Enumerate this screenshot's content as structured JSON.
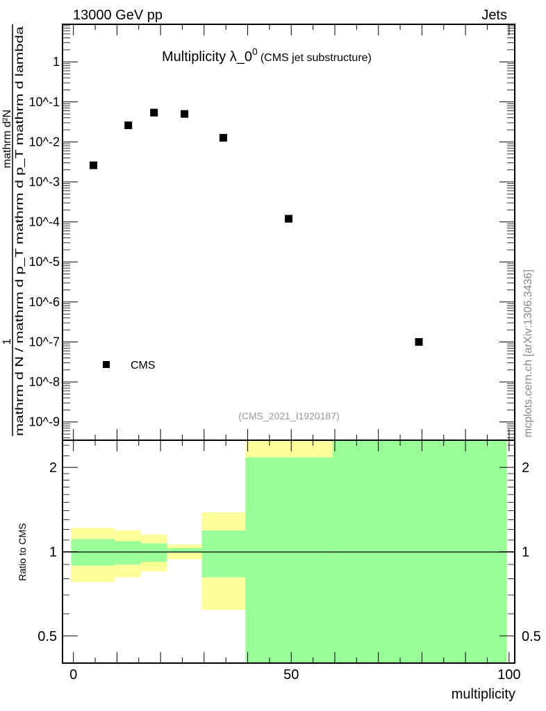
{
  "header": {
    "energy": "13000 GeV pp",
    "process": "Jets"
  },
  "watermark": "mcplots.cern.ch [arXiv:1306.3436]",
  "analysis_id": "(CMS_2021_I1920187)",
  "chart_data": [
    {
      "type": "scatter",
      "title": "Multiplicity λ_0",
      "title_sup": "0",
      "subtitle": "(CMS jet substructure)",
      "ylabel_numerator": [
        "1",
        "mathrm d²N"
      ],
      "ylabel_denominator": "mathrm d N / mathrm d p_T mathrm d p_T mathrm d lambda",
      "yscale": "log",
      "xlim": [
        -2.5,
        101.3
      ],
      "ylim": [
        3.5e-10,
        8.7
      ],
      "ytick_labels": [
        "1",
        "10^-1",
        "10^-2",
        "10^-3",
        "10^-4",
        "10^-5",
        "10^-6",
        "10^-7",
        "10^-8",
        "10^-9"
      ],
      "legend": {
        "label": "CMS",
        "position": "bottom-left"
      },
      "series": [
        {
          "name": "CMS",
          "x": [
            4.6,
            12.6,
            18.5,
            25.5,
            34.4,
            49.4,
            79.3
          ],
          "y": [
            0.0026,
            0.026,
            0.054,
            0.05,
            0.0127,
            0.00012,
            1e-07
          ]
        }
      ]
    },
    {
      "type": "area",
      "ylabel": "Ratio to CMS",
      "xlabel": "multiplicity",
      "yscale": "log",
      "ylim": [
        0.4,
        2.5
      ],
      "xlim": [
        -2.5,
        101.3
      ],
      "xtick_labels": [
        "0",
        "50",
        "100"
      ],
      "ytick_labels": [
        "0.5",
        "1",
        "2"
      ],
      "bins": [
        {
          "lo": -0.5,
          "hi": 9.5,
          "yellow": [
            0.78,
            1.215
          ],
          "green": [
            0.892,
            1.109
          ]
        },
        {
          "lo": 9.5,
          "hi": 15.5,
          "yellow": [
            0.81,
            1.19
          ],
          "green": [
            0.9,
            1.09
          ]
        },
        {
          "lo": 15.5,
          "hi": 21.5,
          "yellow": [
            0.85,
            1.15
          ],
          "green": [
            0.92,
            1.07
          ]
        },
        {
          "lo": 21.5,
          "hi": 29.5,
          "yellow": [
            0.94,
            1.06
          ],
          "green": [
            0.99,
            1.03
          ]
        },
        {
          "lo": 29.5,
          "hi": 39.5,
          "yellow": [
            0.62,
            1.38
          ],
          "green": [
            0.81,
            1.19
          ]
        },
        {
          "lo": 39.5,
          "hi": 59.5,
          "yellow": [
            0.3,
            3.0
          ],
          "green": [
            0.3,
            2.17
          ]
        },
        {
          "lo": 59.5,
          "hi": 99.5,
          "yellow": [
            0.3,
            3.0
          ],
          "green": [
            0.3,
            3.0
          ]
        }
      ],
      "colors": {
        "yellow": "#ffff99",
        "green": "#99ff99"
      }
    }
  ]
}
